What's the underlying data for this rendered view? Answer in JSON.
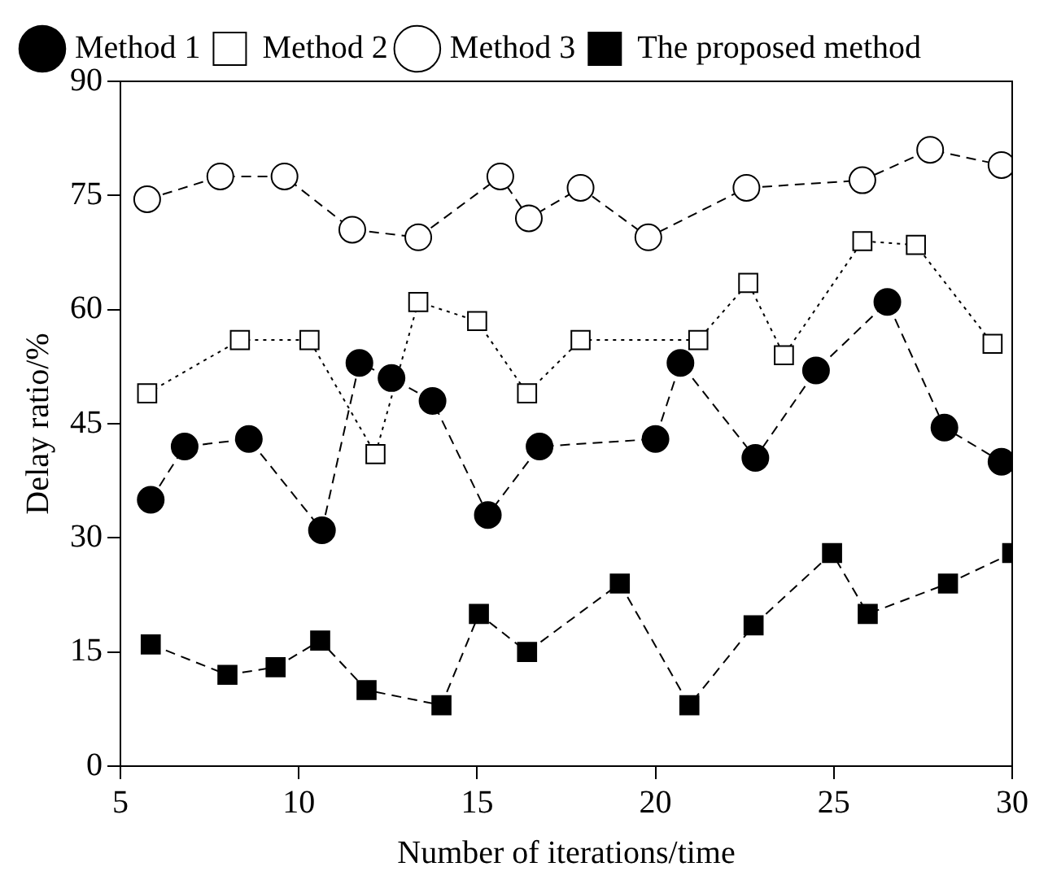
{
  "chart_data": {
    "type": "line",
    "xlabel": "Number of iterations/time",
    "ylabel": "Delay ratio/%",
    "xlim": [
      5,
      30
    ],
    "xticks": [
      5,
      10,
      15,
      20,
      25,
      30
    ],
    "ylim": [
      0,
      90
    ],
    "yticks": [
      0,
      15,
      30,
      45,
      60,
      75,
      90
    ],
    "grid": false,
    "legend": "top left",
    "series": [
      {
        "name": "Method 1",
        "color": "#000000",
        "marker": "circle",
        "line_style": "dashed",
        "x": [
          5.85,
          6.8,
          8.6,
          10.65,
          11.7,
          12.6,
          13.75,
          15.3,
          16.75,
          20,
          20.7,
          22.8,
          24.5,
          26.5,
          28.1,
          29.7
        ],
        "values": [
          35,
          42,
          43,
          31,
          53,
          51,
          48,
          33,
          42,
          43,
          53,
          40.5,
          52,
          61,
          44.5,
          40
        ]
      },
      {
        "name": "Method 2",
        "color": "#000000",
        "marker": "square",
        "line_style": "dotted",
        "x": [
          5.75,
          8.35,
          10.3,
          12.15,
          13.35,
          15.0,
          16.4,
          17.9,
          21.2,
          22.6,
          23.6,
          25.8,
          27.3,
          29.45
        ],
        "values": [
          49,
          56,
          56,
          41,
          61,
          58.5,
          49,
          56,
          56,
          63.5,
          54,
          69,
          68.5,
          55.5
        ]
      },
      {
        "name": "Method 3",
        "color": "#000000",
        "marker": "circle",
        "line_style": "dashed",
        "x": [
          5.75,
          7.8,
          9.6,
          11.5,
          13.35,
          15.65,
          16.45,
          17.9,
          19.8,
          22.55,
          25.8,
          27.7,
          29.7
        ],
        "values": [
          74.5,
          77.5,
          77.5,
          70.5,
          69.5,
          77.5,
          72,
          76,
          69.5,
          76,
          77,
          81,
          79
        ]
      },
      {
        "name": "The proposed method",
        "color": "#000000",
        "marker": "square",
        "line_style": "dashed",
        "x": [
          5.85,
          8.0,
          9.35,
          10.6,
          11.9,
          14.0,
          15.05,
          16.4,
          19.0,
          20.95,
          22.75,
          24.95,
          25.95,
          28.2,
          30.0
        ],
        "values": [
          16,
          12,
          13,
          16.5,
          10,
          8,
          20,
          15,
          24,
          8,
          18.5,
          28,
          20,
          24,
          28
        ]
      }
    ]
  }
}
